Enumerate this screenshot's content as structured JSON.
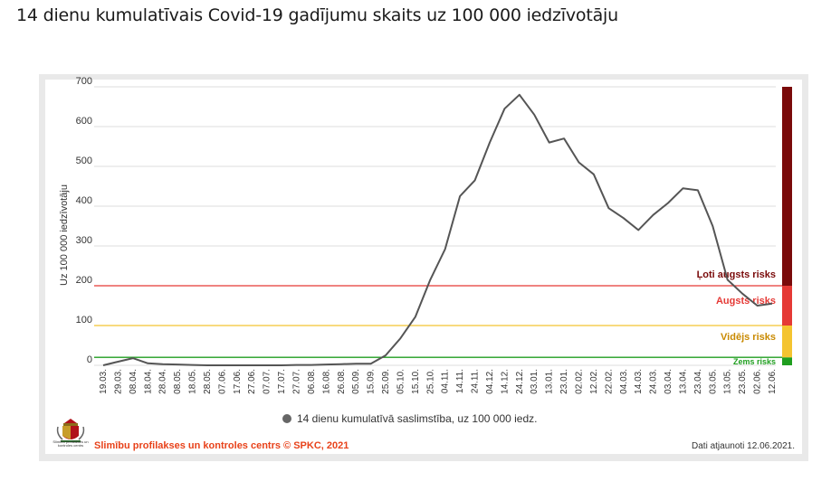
{
  "page": {
    "title": "14 dienu kumulatīvais Covid-19 gadījumu skaits uz 100 000 iedzīvotāju"
  },
  "colors": {
    "line": "#555555",
    "low": "#1f9e1f",
    "medium": "#f4c430",
    "high": "#e53935",
    "very_high": "#7a0a0a",
    "grid": "#dddddd"
  },
  "footer": {
    "source": "Slimību profilakses un kontroles centrs © SPKC, 2021",
    "updated": "Dati atjaunoti 12.06.2021.",
    "logo_caption": "Slimību profilakses un kontroles centrs"
  },
  "chart_data": {
    "type": "line",
    "title": "",
    "ylabel": "Uz 100 000 iedzīvotāju",
    "xlabel": "",
    "ylim": [
      0,
      700
    ],
    "yticks": [
      0,
      100,
      200,
      300,
      400,
      500,
      600,
      700
    ],
    "grid": true,
    "legend_position": "bottom",
    "x_ticks": [
      "19.03.",
      "29.03.",
      "08.04.",
      "18.04.",
      "28.04.",
      "08.05.",
      "18.05.",
      "28.05.",
      "07.06.",
      "17.06.",
      "27.06.",
      "07.07.",
      "17.07.",
      "27.07.",
      "06.08.",
      "16.08.",
      "26.08.",
      "05.09.",
      "15.09.",
      "25.09.",
      "05.10.",
      "15.10.",
      "25.10.",
      "04.11.",
      "14.11.",
      "24.11.",
      "04.12.",
      "14.12.",
      "24.12.",
      "03.01.",
      "13.01.",
      "23.01.",
      "02.02.",
      "12.02.",
      "22.02.",
      "04.03.",
      "14.03.",
      "24.03.",
      "03.04.",
      "13.04.",
      "23.04.",
      "03.05.",
      "13.05.",
      "23.05.",
      "02.06.",
      "12.06."
    ],
    "series": [
      {
        "name": "14 dienu kumulatīvā saslimstība, uz 100 000 iedz.",
        "values": [
          0,
          9,
          18,
          5,
          3,
          2,
          1,
          0,
          0,
          0,
          0,
          0,
          0,
          1,
          1,
          2,
          3,
          4,
          4,
          25,
          68,
          122,
          215,
          292,
          425,
          465,
          560,
          645,
          680,
          630,
          560,
          570,
          510,
          480,
          395,
          370,
          340,
          378,
          408,
          445,
          440,
          350,
          215,
          180,
          150,
          155
        ]
      }
    ],
    "thresholds": [
      {
        "label": "Zems risks",
        "value": 20,
        "range": [
          0,
          20
        ]
      },
      {
        "label": "Vidējs risks",
        "value": 100,
        "range": [
          20,
          100
        ]
      },
      {
        "label": "Augsts risks",
        "value": 200,
        "range": [
          100,
          200
        ]
      },
      {
        "label": "Ļoti augsts risks",
        "range": [
          200,
          700
        ]
      }
    ]
  }
}
